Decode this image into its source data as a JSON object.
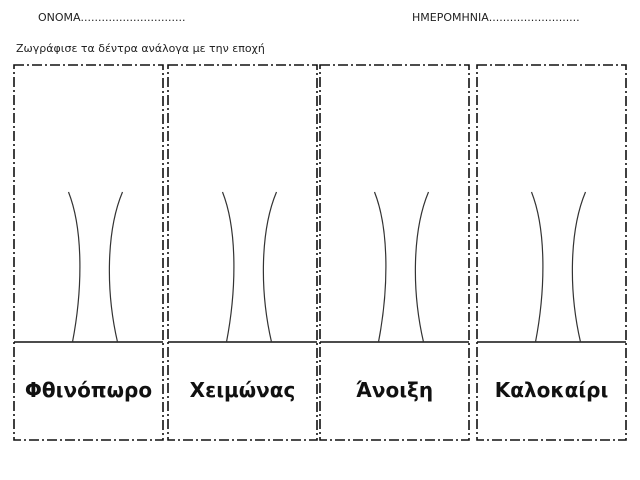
{
  "header": {
    "name_label": "ΟΝΟΜΑ..............................",
    "date_label": "ΗΜΕΡΟΜΗΝΙΑ.........................."
  },
  "instruction": "Ζωγράφισε τα δέντρα ανάλογα με την εποχή",
  "panels": [
    {
      "label": "Φθινόπωρο"
    },
    {
      "label": "Χειμώνας"
    },
    {
      "label": "Άνοιξη"
    },
    {
      "label": "Καλοκαίρι"
    }
  ]
}
